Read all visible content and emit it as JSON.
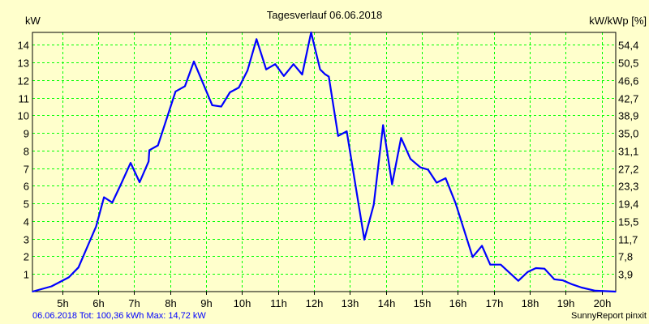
{
  "chart_data": {
    "type": "line",
    "title": "Tagesverlauf 06.06.2018",
    "ylabel": "kW",
    "ylabel_right": "kW/kWp [%]",
    "xlim": [
      4.17,
      20.39
    ],
    "ylim": [
      0,
      14.7
    ],
    "grid": true,
    "x_ticks": [
      5,
      6,
      7,
      8,
      9,
      10,
      11,
      12,
      13,
      14,
      15,
      16,
      17,
      18,
      19,
      20
    ],
    "x_tick_labels": [
      "5h",
      "6h",
      "7h",
      "8h",
      "9h",
      "10h",
      "11h",
      "12h",
      "13h",
      "14h",
      "15h",
      "16h",
      "17h",
      "18h",
      "19h",
      "20h"
    ],
    "y_ticks": [
      1,
      2,
      3,
      4,
      5,
      6,
      7,
      8,
      9,
      10,
      11,
      12,
      13,
      14
    ],
    "y_tick_labels": [
      "1",
      "2",
      "3",
      "4",
      "5",
      "6",
      "7",
      "8",
      "9",
      "10",
      "11",
      "12",
      "13",
      "14"
    ],
    "y_right_ticks": [
      1,
      2,
      3,
      4,
      5,
      6,
      7,
      8,
      9,
      10,
      11,
      12,
      13,
      14
    ],
    "y_right_tick_labels": [
      "3,9",
      "7,8",
      "11,7",
      "15,5",
      "19,4",
      "23,3",
      "27,2",
      "31,1",
      "35,0",
      "38,9",
      "42,7",
      "46,6",
      "50,5",
      "54,4"
    ],
    "series": [
      {
        "name": "kW",
        "color": "#0000ff",
        "x": [
          4.17,
          4.7,
          5.18,
          5.45,
          5.94,
          6.16,
          6.39,
          6.63,
          6.9,
          7.15,
          7.4,
          7.42,
          7.66,
          8.15,
          8.41,
          8.66,
          9.17,
          9.42,
          9.66,
          9.91,
          10.15,
          10.4,
          10.67,
          10.92,
          11.16,
          11.43,
          11.67,
          11.92,
          12.17,
          12.3,
          12.41,
          12.67,
          12.91,
          13.4,
          13.66,
          13.92,
          14.17,
          14.42,
          14.68,
          14.96,
          15.17,
          15.41,
          15.66,
          15.94,
          16.41,
          16.67,
          16.9,
          17.19,
          17.68,
          17.94,
          18.17,
          18.41,
          18.68,
          18.92,
          19.18,
          19.44,
          19.71,
          19.82,
          20.39
        ],
        "y": [
          0,
          0.3,
          0.81,
          1.37,
          3.7,
          5.35,
          5.05,
          6.08,
          7.3,
          6.2,
          7.38,
          8.02,
          8.29,
          11.35,
          11.65,
          13.05,
          10.57,
          10.49,
          11.3,
          11.57,
          12.54,
          14.32,
          12.6,
          12.9,
          12.23,
          12.9,
          12.31,
          14.7,
          12.6,
          12.34,
          12.19,
          8.83,
          9.09,
          2.95,
          4.93,
          9.44,
          6.08,
          8.72,
          7.53,
          7.04,
          6.92,
          6.18,
          6.43,
          5.0,
          1.96,
          2.6,
          1.53,
          1.53,
          0.61,
          1.11,
          1.33,
          1.3,
          0.7,
          0.64,
          0.41,
          0.23,
          0.1,
          0.05,
          0
        ]
      }
    ],
    "grid_color": "#00ff00",
    "background": "#ffffcc"
  },
  "footer": {
    "summary": "06.06.2018 Tot: 100,36 kWh Max: 14,72 kW",
    "credit": "SunnyReport pinxit"
  }
}
